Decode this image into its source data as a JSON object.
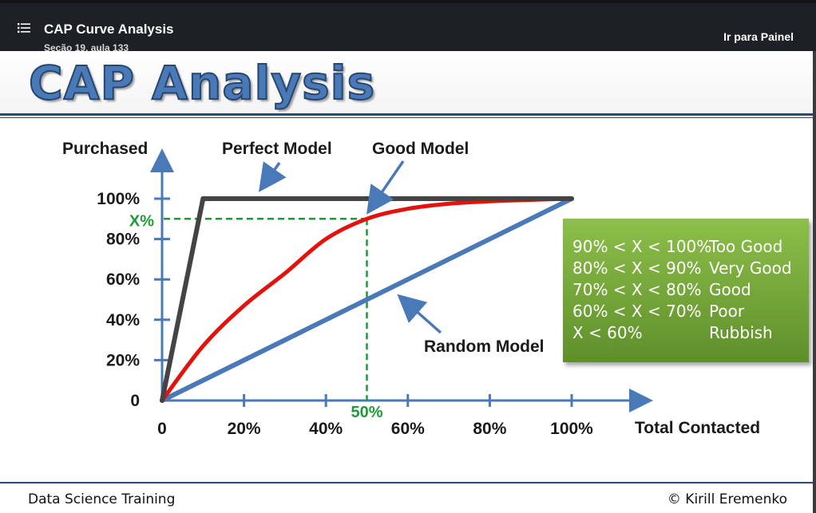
{
  "topbar": {
    "title": "CAP Curve Analysis",
    "subtitle": "Seção 19, aula 133",
    "goto_label": "Ir para Painel",
    "menu_icon": "list-icon"
  },
  "slide": {
    "title": "CAP Analysis",
    "footer_left": "Data Science Training",
    "footer_right": "© Kirill Eremenko"
  },
  "chart_data": {
    "type": "line",
    "ylabel": "Purchased",
    "xlabel": "Total Contacted",
    "x_ticks": [
      "0",
      "20%",
      "40%",
      "60%",
      "80%",
      "100%"
    ],
    "y_ticks": [
      "0",
      "20%",
      "40%",
      "60%",
      "80%",
      "100%"
    ],
    "xlim": [
      0,
      100
    ],
    "ylim": [
      0,
      100
    ],
    "series": [
      {
        "name": "Perfect Model",
        "color": "#444444",
        "x": [
          0,
          10,
          100
        ],
        "y": [
          0,
          100,
          100
        ]
      },
      {
        "name": "Good Model",
        "color": "#e3120b",
        "x": [
          0,
          10,
          20,
          30,
          40,
          50,
          60,
          70,
          80,
          90,
          100
        ],
        "y": [
          0,
          27,
          47,
          63,
          80,
          90,
          95,
          97.5,
          98.7,
          99.4,
          100
        ]
      },
      {
        "name": "Random Model",
        "color": "#4a79b8",
        "x": [
          0,
          100
        ],
        "y": [
          0,
          100
        ]
      }
    ],
    "annotations": {
      "marker_y_label": "X%",
      "marker_x_label": "50%",
      "marker_x": 50,
      "marker_y": 90,
      "marker_color": "#1f9a3a"
    },
    "legend_box": {
      "rows": [
        {
          "condition": "90% < X < 100%",
          "label": "Too Good"
        },
        {
          "condition": "80% < X < 90%",
          "label": "Very Good"
        },
        {
          "condition": "70% < X < 80%",
          "label": "Good"
        },
        {
          "condition": "60% < X < 70%",
          "label": "Poor"
        },
        {
          "condition": "X < 60%",
          "label": "Rubbish"
        }
      ],
      "background": "#7aae3e"
    }
  }
}
